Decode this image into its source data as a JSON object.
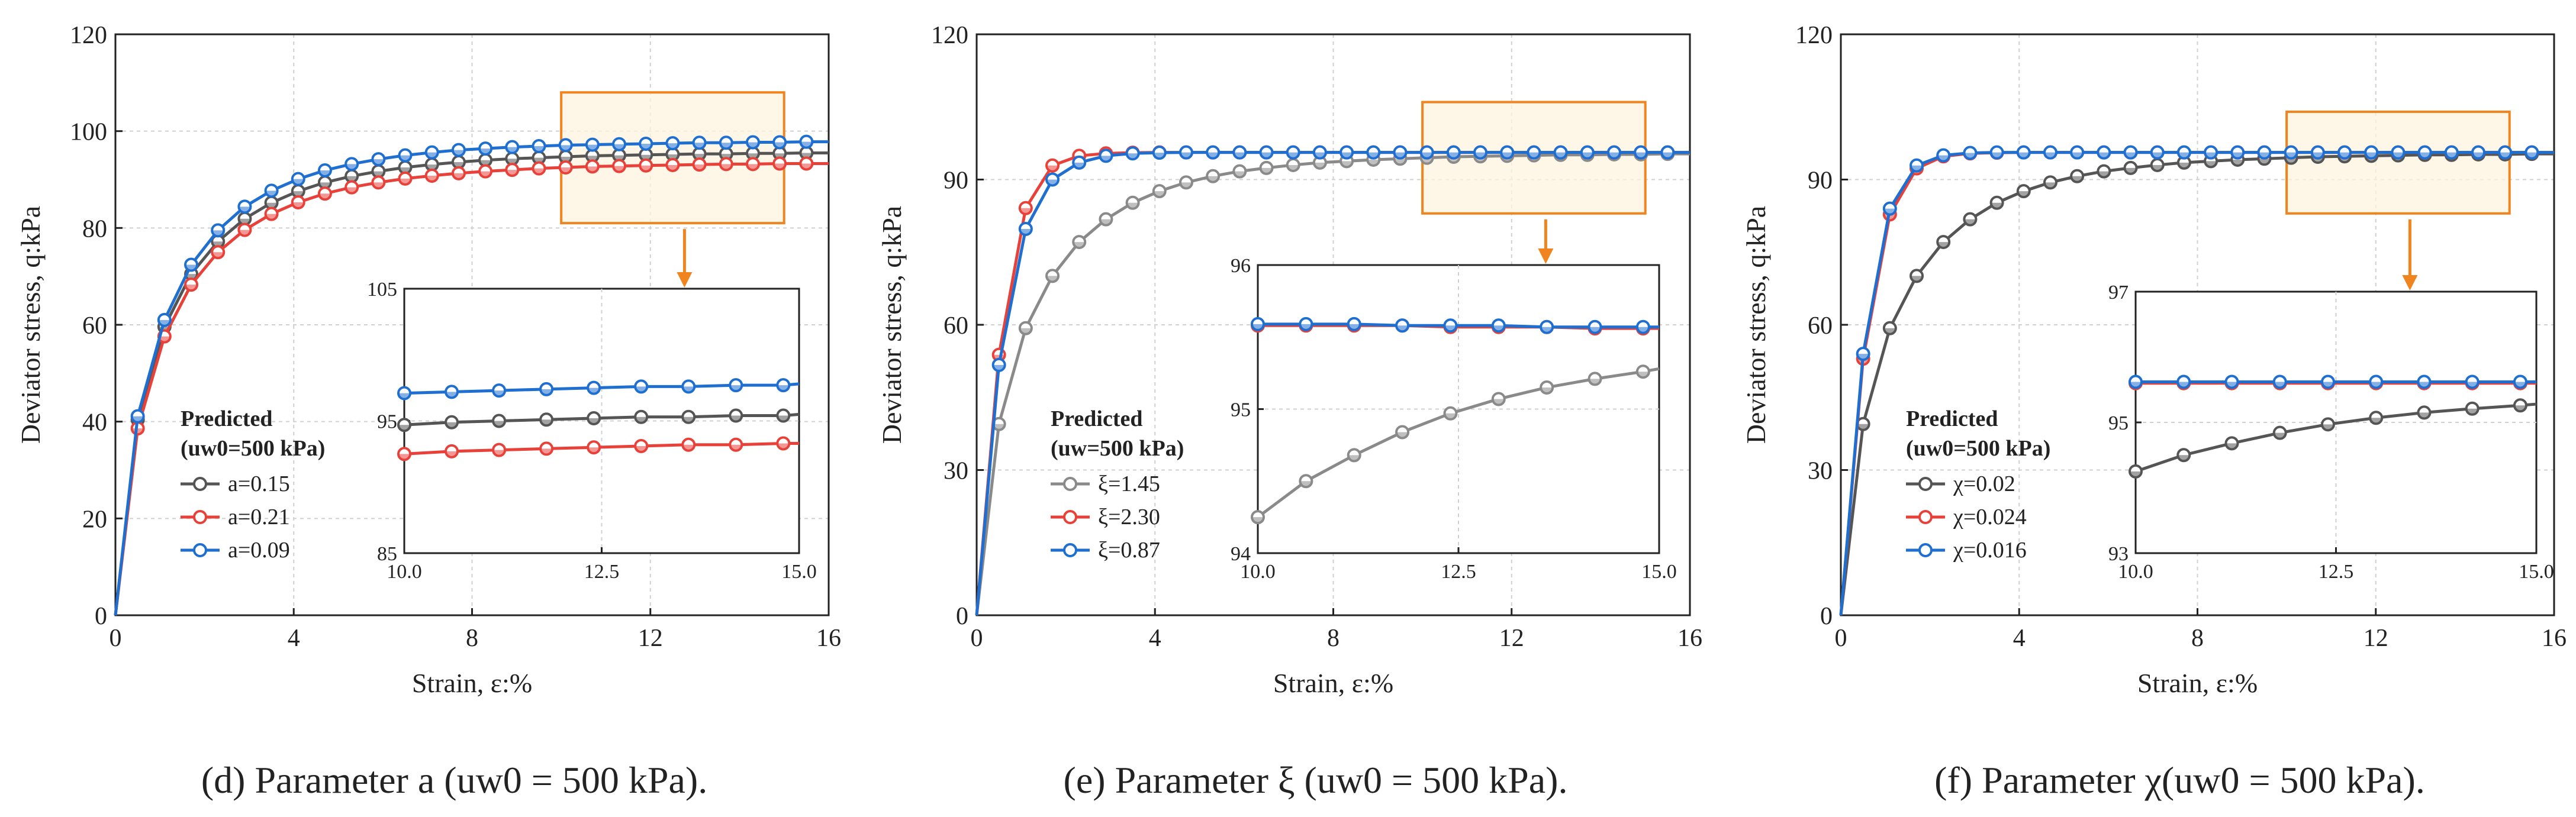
{
  "chart_data": [
    {
      "type": "line",
      "panel": "d",
      "caption": {
        "letter": "(d)",
        "text": "Parameter a (uw0 = 500 kPa)."
      },
      "xlabel": "Strain, ε:%",
      "ylabel": "Deviator stress, q:kPa",
      "xlim": [
        0,
        16
      ],
      "ylim": [
        0,
        120
      ],
      "xticks": [
        "0",
        "4",
        "8",
        "12",
        "16"
      ],
      "yticks": [
        "0",
        "20",
        "40",
        "60",
        "80",
        "100",
        "120"
      ],
      "legend_title": [
        "Predicted",
        "(uw0=500 kPa)"
      ],
      "x": [
        0,
        0.5,
        1.1,
        1.7,
        2.3,
        2.9,
        3.5,
        4.1,
        4.7,
        5.3,
        5.9,
        6.5,
        7.1,
        7.7,
        8.3,
        8.9,
        9.5,
        10.1,
        10.7,
        11.3,
        11.9,
        12.5,
        13.1,
        13.7,
        14.3,
        14.9,
        15.5,
        16.0
      ],
      "series": [
        {
          "name": "a=0.15",
          "color": "#555555",
          "values": [
            0,
            40.4,
            59.6,
            70.5,
            77.2,
            81.9,
            85.2,
            87.6,
            89.4,
            90.7,
            91.7,
            92.5,
            93.1,
            93.6,
            94.0,
            94.3,
            94.5,
            94.7,
            94.9,
            95.0,
            95.1,
            95.2,
            95.3,
            95.3,
            95.4,
            95.4,
            95.5,
            95.5
          ]
        },
        {
          "name": "a=0.21",
          "color": "#e8413a",
          "values": [
            0,
            38.6,
            57.6,
            68.3,
            75.0,
            79.6,
            82.9,
            85.3,
            87.1,
            88.4,
            89.4,
            90.2,
            90.8,
            91.3,
            91.7,
            92.0,
            92.3,
            92.5,
            92.7,
            92.8,
            92.9,
            93.0,
            93.1,
            93.2,
            93.2,
            93.3,
            93.3,
            93.3
          ]
        },
        {
          "name": "a=0.09",
          "color": "#1f6fd1",
          "values": [
            0,
            41.1,
            61.0,
            72.4,
            79.5,
            84.4,
            87.7,
            90.1,
            91.9,
            93.2,
            94.2,
            95.0,
            95.6,
            96.1,
            96.4,
            96.7,
            96.9,
            97.1,
            97.2,
            97.3,
            97.4,
            97.5,
            97.6,
            97.6,
            97.7,
            97.7,
            97.8,
            97.8
          ]
        }
      ],
      "zoom_box": {
        "xlim": [
          10,
          15
        ],
        "ylim": [
          81,
          108
        ]
      },
      "inset": {
        "xlim": [
          10,
          15
        ],
        "ylim": [
          85,
          105
        ],
        "xticks": [
          "10.0",
          "12.5",
          "15.0"
        ],
        "yticks": [
          "85",
          "95",
          "105"
        ],
        "x": [
          10,
          10.6,
          11.2,
          11.8,
          12.4,
          13.0,
          13.6,
          14.2,
          14.8,
          15.0
        ],
        "series_values": [
          [
            94.7,
            94.9,
            95.0,
            95.1,
            95.2,
            95.3,
            95.3,
            95.4,
            95.4,
            95.5
          ],
          [
            92.5,
            92.7,
            92.8,
            92.9,
            93.0,
            93.1,
            93.2,
            93.2,
            93.3,
            93.3
          ],
          [
            97.1,
            97.2,
            97.3,
            97.4,
            97.5,
            97.6,
            97.6,
            97.7,
            97.7,
            97.8
          ]
        ]
      }
    },
    {
      "type": "line",
      "panel": "e",
      "caption": {
        "letter": "(e)",
        "text": "Parameter ξ (uw0 = 500 kPa)."
      },
      "xlabel": "Strain, ε:%",
      "ylabel": "Deviator stress, q:kPa",
      "xlim": [
        0,
        16
      ],
      "ylim": [
        0,
        120
      ],
      "xticks": [
        "0",
        "4",
        "8",
        "12",
        "16"
      ],
      "yticks": [
        "0",
        "30",
        "60",
        "90",
        "120"
      ],
      "legend_title": [
        "Predicted",
        "(uw=500 kPa)"
      ],
      "x": [
        0,
        0.5,
        1.1,
        1.7,
        2.3,
        2.9,
        3.5,
        4.1,
        4.7,
        5.3,
        5.9,
        6.5,
        7.1,
        7.7,
        8.3,
        8.9,
        9.5,
        10.1,
        10.7,
        11.3,
        11.9,
        12.5,
        13.1,
        13.7,
        14.3,
        14.9,
        15.5,
        16.0
      ],
      "series": [
        {
          "name": "ξ=1.45",
          "color": "#8a8a8a",
          "values": [
            0,
            39.5,
            59.3,
            70.1,
            77.1,
            81.8,
            85.2,
            87.6,
            89.4,
            90.7,
            91.7,
            92.4,
            93.0,
            93.5,
            93.8,
            94.1,
            94.3,
            94.5,
            94.7,
            94.8,
            94.9,
            95.0,
            95.1,
            95.1,
            95.2,
            95.2,
            95.3,
            95.3
          ]
        },
        {
          "name": "ξ=2.30",
          "color": "#e8413a",
          "values": [
            0,
            53.8,
            84.1,
            92.9,
            94.9,
            95.4,
            95.55,
            95.6,
            95.6,
            95.6,
            95.6,
            95.6,
            95.6,
            95.6,
            95.6,
            95.6,
            95.6,
            95.6,
            95.6,
            95.6,
            95.6,
            95.6,
            95.6,
            95.6,
            95.6,
            95.6,
            95.6,
            95.6
          ]
        },
        {
          "name": "ξ=0.87",
          "color": "#1f6fd1",
          "values": [
            0,
            51.7,
            79.8,
            90.0,
            93.5,
            94.9,
            95.4,
            95.55,
            95.6,
            95.6,
            95.6,
            95.6,
            95.6,
            95.6,
            95.6,
            95.6,
            95.6,
            95.6,
            95.6,
            95.6,
            95.6,
            95.6,
            95.6,
            95.6,
            95.6,
            95.6,
            95.6,
            95.6
          ]
        }
      ],
      "zoom_box": {
        "xlim": [
          10,
          15
        ],
        "ylim": [
          83,
          106
        ]
      },
      "inset": {
        "xlim": [
          10,
          15
        ],
        "ylim": [
          94,
          96
        ],
        "xticks": [
          "10.0",
          "12.5",
          "15.0"
        ],
        "yticks": [
          "94",
          "95",
          "96"
        ],
        "x": [
          10,
          10.6,
          11.2,
          11.8,
          12.4,
          13.0,
          13.6,
          14.2,
          14.8,
          15.0
        ],
        "series_values": [
          [
            94.25,
            94.5,
            94.68,
            94.84,
            94.97,
            95.07,
            95.15,
            95.21,
            95.26,
            95.28
          ],
          [
            95.58,
            95.58,
            95.58,
            95.58,
            95.57,
            95.57,
            95.57,
            95.56,
            95.56,
            95.56
          ],
          [
            95.59,
            95.59,
            95.59,
            95.58,
            95.58,
            95.58,
            95.57,
            95.57,
            95.57,
            95.57
          ]
        ]
      }
    },
    {
      "type": "line",
      "panel": "f",
      "caption": {
        "letter": "(f)",
        "text": "Parameter χ(uw0 = 500 kPa)."
      },
      "xlabel": "Strain, ε:%",
      "ylabel": "Deviator stress, q:kPa",
      "xlim": [
        0,
        16
      ],
      "ylim": [
        0,
        120
      ],
      "xticks": [
        "0",
        "4",
        "8",
        "12",
        "16"
      ],
      "yticks": [
        "0",
        "30",
        "60",
        "90",
        "120"
      ],
      "legend_title": [
        "Predicted",
        "(uw0=500 kPa)"
      ],
      "x": [
        0,
        0.5,
        1.1,
        1.7,
        2.3,
        2.9,
        3.5,
        4.1,
        4.7,
        5.3,
        5.9,
        6.5,
        7.1,
        7.7,
        8.3,
        8.9,
        9.5,
        10.1,
        10.7,
        11.3,
        11.9,
        12.5,
        13.1,
        13.7,
        14.3,
        14.9,
        15.5,
        16.0
      ],
      "series": [
        {
          "name": "χ=0.02",
          "color": "#555555",
          "values": [
            0,
            39.5,
            59.3,
            70.1,
            77.1,
            81.8,
            85.2,
            87.6,
            89.4,
            90.7,
            91.7,
            92.4,
            93.0,
            93.5,
            93.8,
            94.1,
            94.3,
            94.5,
            94.7,
            94.8,
            94.9,
            95.0,
            95.1,
            95.1,
            95.2,
            95.2,
            95.3,
            95.3
          ]
        },
        {
          "name": "χ=0.024",
          "color": "#e8413a",
          "values": [
            0,
            53.0,
            82.8,
            92.3,
            94.8,
            95.4,
            95.55,
            95.6,
            95.6,
            95.6,
            95.6,
            95.6,
            95.6,
            95.6,
            95.6,
            95.6,
            95.6,
            95.6,
            95.6,
            95.6,
            95.6,
            95.6,
            95.6,
            95.6,
            95.6,
            95.6,
            95.6,
            95.6
          ]
        },
        {
          "name": "χ=0.016",
          "color": "#1f6fd1",
          "values": [
            0,
            54.0,
            84.0,
            92.9,
            95.0,
            95.5,
            95.6,
            95.6,
            95.6,
            95.6,
            95.6,
            95.6,
            95.6,
            95.6,
            95.6,
            95.6,
            95.6,
            95.6,
            95.6,
            95.6,
            95.6,
            95.6,
            95.6,
            95.6,
            95.6,
            95.6,
            95.6,
            95.6
          ]
        }
      ],
      "zoom_box": {
        "xlim": [
          10,
          15
        ],
        "ylim": [
          83,
          104
        ]
      },
      "inset": {
        "xlim": [
          10,
          15
        ],
        "ylim": [
          93,
          97
        ],
        "xticks": [
          "10.0",
          "12.5",
          "15.0"
        ],
        "yticks": [
          "93",
          "95",
          "97"
        ],
        "x": [
          10,
          10.6,
          11.2,
          11.8,
          12.4,
          13.0,
          13.6,
          14.2,
          14.8,
          15.0
        ],
        "series_values": [
          [
            94.25,
            94.5,
            94.68,
            94.84,
            94.97,
            95.07,
            95.15,
            95.21,
            95.26,
            95.28
          ],
          [
            95.6,
            95.6,
            95.6,
            95.6,
            95.6,
            95.6,
            95.6,
            95.6,
            95.6,
            95.6
          ],
          [
            95.62,
            95.62,
            95.62,
            95.62,
            95.62,
            95.62,
            95.62,
            95.62,
            95.62,
            95.62
          ]
        ]
      }
    }
  ]
}
